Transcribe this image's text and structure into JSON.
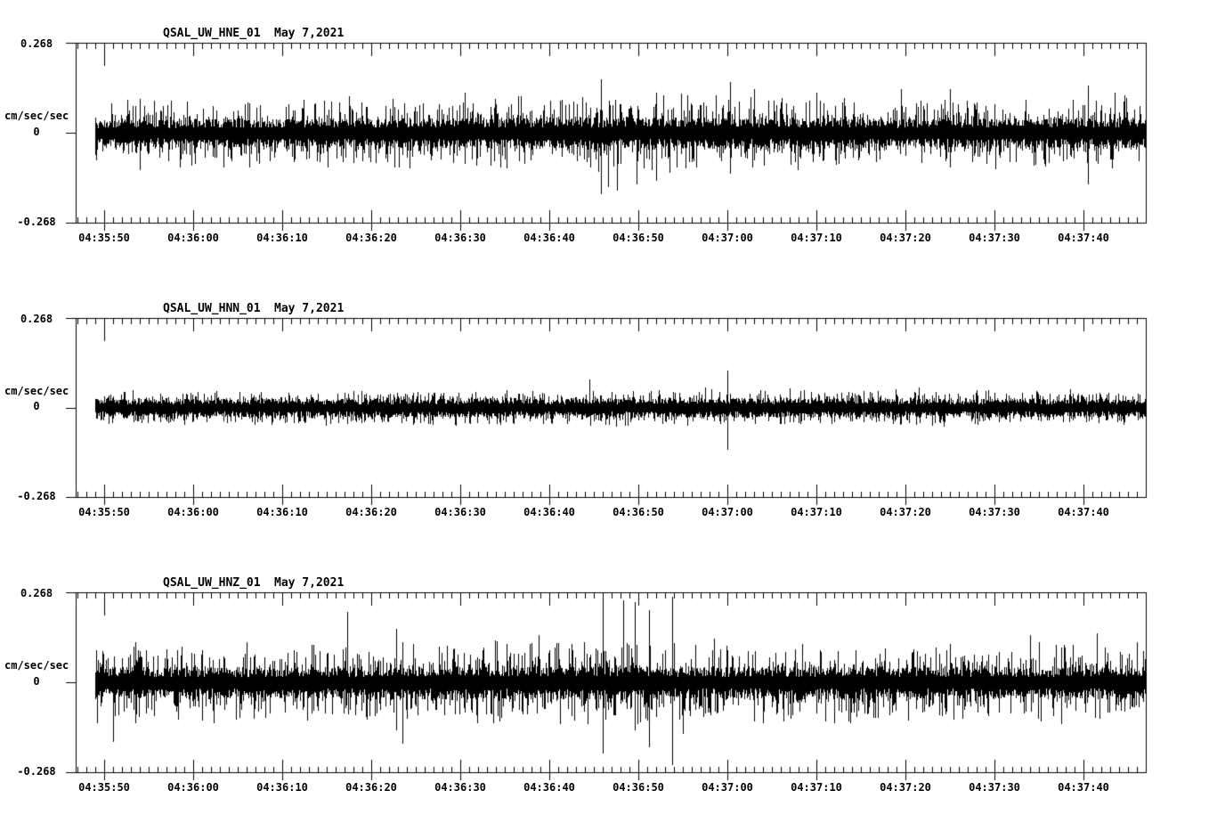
{
  "page": {
    "background": "#ffffff",
    "foreground": "#000000"
  },
  "chart_data": [
    {
      "type": "line",
      "title": "QSAL_UW_HNE_01",
      "date_label": "May 7,2021",
      "station": "QSAL",
      "network": "UW",
      "channel": "HNE",
      "location": "01",
      "ylabel": "cm/sec/sec",
      "ylim": [
        -0.268,
        0.268
      ],
      "ytick_labels": [
        "0.268",
        "0",
        "-0.268"
      ],
      "ytick_values": [
        0.268,
        0,
        -0.268
      ],
      "xtick_labels": [
        "04:35:50",
        "04:36:00",
        "04:36:10",
        "04:36:20",
        "04:36:30",
        "04:36:40",
        "04:36:50",
        "04:37:00",
        "04:37:10",
        "04:37:20",
        "04:37:30",
        "04:37:40"
      ],
      "time_axis": {
        "major_interval_sec": 10,
        "minor_interval_sec": 1,
        "window_start_sec_relative_to_first_tick": -3.2,
        "window_end_sec_relative_to_first_tick": 117,
        "trace_start_sec_relative_to_first_tick": -1.0
      },
      "grid": false,
      "legend": "none",
      "series": {
        "name": "HNE",
        "units": "cm/sec/sec",
        "seed": 101,
        "noise_envelope": [
          [
            -1,
            0.03,
            0.095
          ],
          [
            20,
            0.032,
            0.1
          ],
          [
            50,
            0.035,
            0.105
          ],
          [
            70,
            0.036,
            0.11
          ],
          [
            90,
            0.031,
            0.095
          ],
          [
            117,
            0.034,
            0.105
          ]
        ],
        "spikes": [
          {
            "t": 4.0,
            "up": 0.1,
            "down": -0.11
          },
          {
            "t": 8.5,
            "down": -0.1
          },
          {
            "t": 27.5,
            "up": 0.11
          },
          {
            "t": 40.5,
            "up": 0.12,
            "down": -0.09
          },
          {
            "t": 46.5,
            "up": 0.11
          },
          {
            "t": 55.8,
            "up": 0.16,
            "down": -0.18
          },
          {
            "t": 56.6,
            "down": -0.16
          },
          {
            "t": 57.6,
            "down": -0.17
          },
          {
            "t": 59.8,
            "down": -0.15
          },
          {
            "t": 62.0,
            "up": 0.12,
            "down": -0.14
          },
          {
            "t": 70.3,
            "up": 0.15,
            "down": -0.12
          },
          {
            "t": 73.0,
            "up": 0.13
          },
          {
            "t": 80.0,
            "up": 0.12
          },
          {
            "t": 89.5,
            "up": 0.13
          },
          {
            "t": 95.0,
            "up": 0.13,
            "down": -0.1
          },
          {
            "t": 110.5,
            "up": 0.14,
            "down": -0.15
          },
          {
            "t": 113.5,
            "up": 0.12
          }
        ]
      }
    },
    {
      "type": "line",
      "title": "QSAL_UW_HNN_01",
      "date_label": "May 7,2021",
      "station": "QSAL",
      "network": "UW",
      "channel": "HNN",
      "location": "01",
      "ylabel": "cm/sec/sec",
      "ylim": [
        -0.268,
        0.268
      ],
      "ytick_labels": [
        "0.268",
        "0",
        "-0.268"
      ],
      "ytick_values": [
        0.268,
        0,
        -0.268
      ],
      "xtick_labels": [
        "04:35:50",
        "04:36:00",
        "04:36:10",
        "04:36:20",
        "04:36:30",
        "04:36:40",
        "04:36:50",
        "04:37:00",
        "04:37:10",
        "04:37:20",
        "04:37:30",
        "04:37:40"
      ],
      "time_axis": {
        "major_interval_sec": 10,
        "minor_interval_sec": 1,
        "window_start_sec_relative_to_first_tick": -3.2,
        "window_end_sec_relative_to_first_tick": 117,
        "trace_start_sec_relative_to_first_tick": -1.0
      },
      "grid": false,
      "legend": "none",
      "series": {
        "name": "HNN",
        "units": "cm/sec/sec",
        "seed": 232,
        "noise_envelope": [
          [
            -1,
            0.02,
            0.048
          ],
          [
            40,
            0.021,
            0.05
          ],
          [
            70,
            0.022,
            0.052
          ],
          [
            117,
            0.02,
            0.048
          ]
        ],
        "spikes": [
          {
            "t": 22.5,
            "down": -0.045
          },
          {
            "t": 31.0,
            "up": 0.04
          },
          {
            "t": 44.5,
            "down": -0.05
          },
          {
            "t": 54.5,
            "up": 0.085
          },
          {
            "t": 57.5,
            "down": -0.055
          },
          {
            "t": 67.5,
            "up": 0.06
          },
          {
            "t": 70.0,
            "up": 0.11,
            "down": -0.125
          },
          {
            "t": 91.5,
            "up": 0.06
          },
          {
            "t": 99.0,
            "up": 0.05
          },
          {
            "t": 108.5,
            "up": 0.055
          }
        ]
      }
    },
    {
      "type": "line",
      "title": "QSAL_UW_HNZ_01",
      "date_label": "May 7,2021",
      "station": "QSAL",
      "network": "UW",
      "channel": "HNZ",
      "location": "01",
      "ylabel": "cm/sec/sec",
      "ylim": [
        -0.268,
        0.268
      ],
      "ytick_labels": [
        "0.268",
        "0",
        "-0.268"
      ],
      "ytick_values": [
        0.268,
        0,
        -0.268
      ],
      "xtick_labels": [
        "04:35:50",
        "04:36:00",
        "04:36:10",
        "04:36:20",
        "04:36:30",
        "04:36:40",
        "04:36:50",
        "04:37:00",
        "04:37:10",
        "04:37:20",
        "04:37:30",
        "04:37:40"
      ],
      "time_axis": {
        "major_interval_sec": 10,
        "minor_interval_sec": 1,
        "window_start_sec_relative_to_first_tick": -3.2,
        "window_end_sec_relative_to_first_tick": 117,
        "trace_start_sec_relative_to_first_tick": -1.0
      },
      "grid": false,
      "legend": "none",
      "series": {
        "name": "HNZ",
        "units": "cm/sec/sec",
        "seed": 363,
        "noise_envelope": [
          [
            -1,
            0.034,
            0.11
          ],
          [
            25,
            0.035,
            0.115
          ],
          [
            55,
            0.038,
            0.125
          ],
          [
            75,
            0.035,
            0.11
          ],
          [
            117,
            0.036,
            0.115
          ]
        ],
        "spikes": [
          {
            "t": 1.0,
            "down": -0.175
          },
          {
            "t": 3.5,
            "down": -0.12
          },
          {
            "t": 16.0,
            "up": 0.12
          },
          {
            "t": 27.3,
            "up": 0.21
          },
          {
            "t": 32.8,
            "up": 0.16,
            "down": -0.14
          },
          {
            "t": 33.5,
            "up": 0.12,
            "down": -0.18
          },
          {
            "t": 48.8,
            "up": 0.14
          },
          {
            "t": 56.0,
            "up": 0.255,
            "down": -0.21
          },
          {
            "t": 58.3,
            "up": 0.245
          },
          {
            "t": 59.6,
            "up": 0.24,
            "down": -0.14
          },
          {
            "t": 61.2,
            "up": 0.215,
            "down": -0.19
          },
          {
            "t": 63.8,
            "up": 0.255,
            "down": -0.245
          },
          {
            "t": 65.0,
            "down": -0.15
          },
          {
            "t": 68.5,
            "up": 0.13
          },
          {
            "t": 82.0,
            "down": -0.12
          },
          {
            "t": 104.0,
            "up": 0.14
          },
          {
            "t": 111.5,
            "up": 0.145
          },
          {
            "t": 116.0,
            "up": 0.12
          }
        ]
      }
    }
  ]
}
